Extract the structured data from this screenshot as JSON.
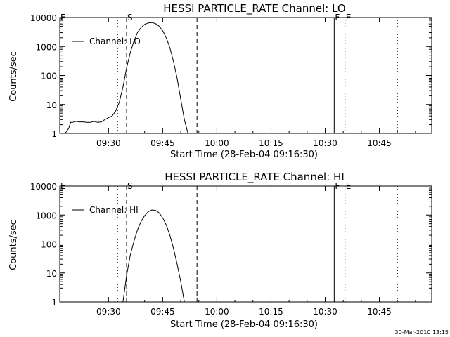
{
  "footer_date": "30-Mar-2010 13:15",
  "chart_data": [
    {
      "type": "line",
      "title": "HESSI PARTICLE_RATE Channel: LO",
      "xlabel": "Start Time (28-Feb-04 09:16:30)",
      "ylabel": "Counts/sec",
      "yscale": "log",
      "ylim": [
        1,
        10000
      ],
      "xlim": [
        "09:16:30",
        "10:59:30"
      ],
      "x_ticks": [
        "09:30",
        "09:45",
        "10:00",
        "10:15",
        "10:30",
        "10:45"
      ],
      "y_ticks": [
        "1",
        "10",
        "100",
        "1000",
        "10000"
      ],
      "legend": {
        "position": "top-left",
        "entries": [
          "Channel: LO"
        ]
      },
      "markers": [
        {
          "label": "E",
          "time": "09:16:30",
          "style": "dotted"
        },
        {
          "label": "",
          "time": "09:32:30",
          "style": "dotted"
        },
        {
          "label": "S",
          "time": "09:35:00",
          "style": "dashed"
        },
        {
          "label": "",
          "time": "09:54:30",
          "style": "dashed"
        },
        {
          "label": "F",
          "time": "10:32:30",
          "style": "solid"
        },
        {
          "label": "E",
          "time": "10:35:30",
          "style": "dotted"
        },
        {
          "label": "",
          "time": "10:50:00",
          "style": "dotted"
        }
      ],
      "series": [
        {
          "name": "Channel: LO",
          "x": [
            "09:18:00",
            "09:19:00",
            "09:19:30",
            "09:20:00",
            "09:21:00",
            "09:22:00",
            "09:23:00",
            "09:24:00",
            "09:25:00",
            "09:26:00",
            "09:27:00",
            "09:28:00",
            "09:29:00",
            "09:30:00",
            "09:31:00",
            "09:32:00",
            "09:33:00",
            "09:34:00",
            "09:35:00",
            "09:36:00",
            "09:37:00",
            "09:38:00",
            "09:39:00",
            "09:40:00",
            "09:41:00",
            "09:42:00",
            "09:43:00",
            "09:44:00",
            "09:45:00",
            "09:46:00",
            "09:47:00",
            "09:48:00",
            "09:49:00",
            "09:50:00",
            "09:51:00",
            "09:52:00"
          ],
          "values": [
            1,
            1.5,
            2.4,
            2.4,
            2.6,
            2.5,
            2.5,
            2.4,
            2.4,
            2.6,
            2.4,
            2.5,
            3,
            3.5,
            4,
            6,
            12,
            40,
            180,
            600,
            1500,
            3000,
            4500,
            5800,
            6500,
            6700,
            6200,
            5000,
            3500,
            2000,
            900,
            300,
            80,
            15,
            3,
            1
          ]
        }
      ]
    },
    {
      "type": "line",
      "title": "HESSI PARTICLE_RATE Channel: HI",
      "xlabel": "Start Time (28-Feb-04 09:16:30)",
      "ylabel": "Counts/sec",
      "yscale": "log",
      "ylim": [
        1,
        10000
      ],
      "xlim": [
        "09:16:30",
        "10:59:30"
      ],
      "x_ticks": [
        "09:30",
        "09:45",
        "10:00",
        "10:15",
        "10:30",
        "10:45"
      ],
      "y_ticks": [
        "1",
        "10",
        "100",
        "1000",
        "10000"
      ],
      "legend": {
        "position": "top-left",
        "entries": [
          "Channel: HI"
        ]
      },
      "markers": [
        {
          "label": "E",
          "time": "09:16:30",
          "style": "dotted"
        },
        {
          "label": "",
          "time": "09:32:30",
          "style": "dotted"
        },
        {
          "label": "S",
          "time": "09:35:00",
          "style": "dashed"
        },
        {
          "label": "",
          "time": "09:54:30",
          "style": "dashed"
        },
        {
          "label": "F",
          "time": "10:32:30",
          "style": "solid"
        },
        {
          "label": "E",
          "time": "10:35:30",
          "style": "dotted"
        },
        {
          "label": "",
          "time": "10:50:00",
          "style": "dotted"
        }
      ],
      "series": [
        {
          "name": "Channel: HI",
          "x": [
            "09:34:00",
            "09:35:00",
            "09:36:00",
            "09:37:00",
            "09:38:00",
            "09:39:00",
            "09:40:00",
            "09:41:00",
            "09:42:00",
            "09:43:00",
            "09:44:00",
            "09:45:00",
            "09:46:00",
            "09:47:00",
            "09:48:00",
            "09:49:00",
            "09:50:00",
            "09:51:00"
          ],
          "values": [
            1,
            8,
            40,
            120,
            300,
            600,
            950,
            1300,
            1500,
            1450,
            1200,
            800,
            450,
            200,
            70,
            20,
            5,
            1
          ]
        }
      ]
    }
  ]
}
